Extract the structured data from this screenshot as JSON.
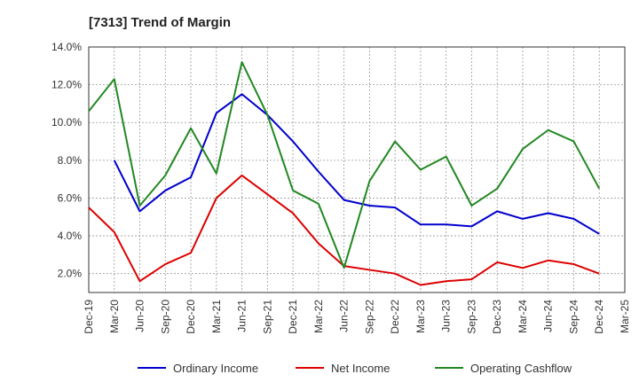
{
  "chart_data": {
    "type": "line",
    "title": "[7313]  Trend of Margin",
    "xlabel": "",
    "ylabel": "",
    "x": [
      "Dec-19",
      "Mar-20",
      "Jun-20",
      "Sep-20",
      "Dec-20",
      "Mar-21",
      "Jun-21",
      "Sep-21",
      "Dec-21",
      "Mar-22",
      "Jun-22",
      "Sep-22",
      "Dec-22",
      "Mar-23",
      "Jun-23",
      "Sep-23",
      "Dec-23",
      "Mar-24",
      "Jun-24",
      "Sep-24",
      "Dec-24",
      "Mar-25"
    ],
    "ylim": [
      1.0,
      14.0
    ],
    "yticks": [
      2.0,
      4.0,
      6.0,
      8.0,
      10.0,
      12.0,
      14.0
    ],
    "ytick_labels": [
      "2.0%",
      "4.0%",
      "6.0%",
      "8.0%",
      "10.0%",
      "12.0%",
      "14.0%"
    ],
    "grid": true,
    "legend_position": "bottom",
    "series": [
      {
        "name": "Ordinary Income",
        "color": "#0000cc",
        "values": [
          null,
          8.0,
          5.3,
          6.4,
          7.1,
          10.5,
          11.5,
          10.4,
          9.0,
          7.4,
          5.9,
          5.6,
          5.5,
          4.6,
          4.6,
          4.5,
          5.3,
          4.9,
          5.2,
          4.9,
          4.1,
          null
        ]
      },
      {
        "name": "Net Income",
        "color": "#dd0000",
        "values": [
          5.5,
          4.2,
          1.6,
          2.5,
          3.1,
          6.0,
          7.2,
          6.2,
          5.2,
          3.6,
          2.4,
          2.2,
          2.0,
          1.4,
          1.6,
          1.7,
          2.6,
          2.3,
          2.7,
          2.5,
          2.0,
          null
        ]
      },
      {
        "name": "Operating Cashflow",
        "color": "#228822",
        "values": [
          10.6,
          12.3,
          5.6,
          7.2,
          9.7,
          7.3,
          13.2,
          10.4,
          6.4,
          5.7,
          2.3,
          6.9,
          9.0,
          7.5,
          8.2,
          5.6,
          6.5,
          8.6,
          9.6,
          9.0,
          6.5,
          null
        ]
      }
    ]
  }
}
